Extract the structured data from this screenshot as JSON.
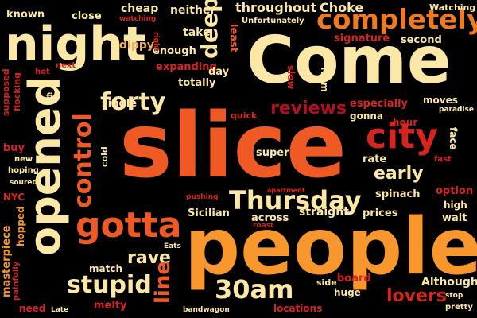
{
  "palette": {
    "background": "#000000",
    "cream": "#fbe8a6",
    "orange": "#f7972e",
    "red": "#d6241e",
    "deep-red": "#b01020",
    "light-orange": "#f4b05a"
  },
  "words": [
    {
      "text": "slice",
      "color": "#ef5a24"
    },
    {
      "text": "people",
      "color": "#f7972e"
    },
    {
      "text": "Come",
      "color": "#fbe8a6"
    },
    {
      "text": "night",
      "color": "#fbe8a6"
    },
    {
      "text": "opened",
      "color": "#fbe8a6"
    },
    {
      "text": "completely",
      "color": "#f07a22"
    },
    {
      "text": "city",
      "color": "#d6241e"
    },
    {
      "text": "gotta",
      "color": "#ef5a24"
    },
    {
      "text": "Thursday",
      "color": "#fbe8a6"
    },
    {
      "text": "control",
      "color": "#ef5a24"
    },
    {
      "text": "forty",
      "color": "#fbe8a6"
    },
    {
      "text": "30am",
      "color": "#fbe8a6"
    },
    {
      "text": "stupid",
      "color": "#fbe8a6"
    },
    {
      "text": "early",
      "color": "#fbe8a6"
    },
    {
      "text": "deep",
      "color": "#fbe8a6"
    },
    {
      "text": "reviews",
      "color": "#b01020"
    },
    {
      "text": "lovers",
      "color": "#d6241e"
    },
    {
      "text": "rave",
      "color": "#fbe8a6"
    },
    {
      "text": "line",
      "color": "#ef5a24"
    },
    {
      "text": "throughout",
      "color": "#fbe8a6"
    },
    {
      "text": "Choke",
      "color": "#fbe8a6"
    },
    {
      "text": "cheap",
      "color": "#fbe8a6"
    },
    {
      "text": "neither",
      "color": "#fbe8a6"
    },
    {
      "text": "known",
      "color": "#fbe8a6"
    },
    {
      "text": "close",
      "color": "#fbe8a6"
    },
    {
      "text": "watching",
      "color": "#d6241e"
    },
    {
      "text": "Unfortunately",
      "color": "#fbe8a6"
    },
    {
      "text": "take",
      "color": "#fbe8a6"
    },
    {
      "text": "enough",
      "color": "#fbe8a6"
    },
    {
      "text": "least",
      "color": "#ef5a24"
    },
    {
      "text": "signature",
      "color": "#d6241e"
    },
    {
      "text": "second",
      "color": "#fbe8a6"
    },
    {
      "text": "Watching",
      "color": "#fbe8a6"
    },
    {
      "text": "dippy",
      "color": "#f4b05a"
    },
    {
      "text": "expanding",
      "color": "#d6241e"
    },
    {
      "text": "day",
      "color": "#fbe8a6"
    },
    {
      "text": "totally",
      "color": "#fbe8a6"
    },
    {
      "text": "slow",
      "color": "#d6241e"
    },
    {
      "text": "from",
      "color": "#fbe8a6"
    },
    {
      "text": "moves",
      "color": "#fbe8a6"
    },
    {
      "text": "especially",
      "color": "#d6241e"
    },
    {
      "text": "gonna",
      "color": "#fbe8a6"
    },
    {
      "text": "hour",
      "color": "#d6241e"
    },
    {
      "text": "paradise",
      "color": "#fbe8a6"
    },
    {
      "text": "face",
      "color": "#fbe8a6"
    },
    {
      "text": "fast",
      "color": "#d6241e"
    },
    {
      "text": "rate",
      "color": "#fbe8a6"
    },
    {
      "text": "quick",
      "color": "#d6241e"
    },
    {
      "text": "single",
      "color": "#fbe8a6"
    },
    {
      "text": "cold",
      "color": "#fbe8a6"
    },
    {
      "text": "super",
      "color": "#fbe8a6"
    },
    {
      "text": "supposed",
      "color": "#d6241e"
    },
    {
      "text": "flocking",
      "color": "#d6241e"
    },
    {
      "text": "fix",
      "color": "#fbe8a6"
    },
    {
      "text": "buy",
      "color": "#d6241e"
    },
    {
      "text": "new",
      "color": "#fbe8a6"
    },
    {
      "text": "hoping",
      "color": "#fbe8a6"
    },
    {
      "text": "soured",
      "color": "#fbe8a6"
    },
    {
      "text": "NYC",
      "color": "#d6241e"
    },
    {
      "text": "masterpiece",
      "color": "#f7972e"
    },
    {
      "text": "hopped",
      "color": "#f7972e"
    },
    {
      "text": "painfully",
      "color": "#d6241e"
    },
    {
      "text": "need",
      "color": "#d6241e"
    },
    {
      "text": "Late",
      "color": "#fbe8a6"
    },
    {
      "text": "match",
      "color": "#fbe8a6"
    },
    {
      "text": "Eats",
      "color": "#fbe8a6"
    },
    {
      "text": "melty",
      "color": "#d6241e"
    },
    {
      "text": "bandwagon",
      "color": "#fbe8a6"
    },
    {
      "text": "locations",
      "color": "#d6241e"
    },
    {
      "text": "side",
      "color": "#fbe8a6"
    },
    {
      "text": "board",
      "color": "#d6241e"
    },
    {
      "text": "huge",
      "color": "#fbe8a6"
    },
    {
      "text": "Although",
      "color": "#fbe8a6"
    },
    {
      "text": "stop",
      "color": "#fbe8a6"
    },
    {
      "text": "pretty",
      "color": "#fbe8a6"
    },
    {
      "text": "Sicilian",
      "color": "#fbe8a6"
    },
    {
      "text": "across",
      "color": "#fbe8a6"
    },
    {
      "text": "straight",
      "color": "#fbe8a6"
    },
    {
      "text": "prices",
      "color": "#fbe8a6"
    },
    {
      "text": "wait",
      "color": "#fbe8a6"
    },
    {
      "text": "high",
      "color": "#fbe8a6"
    },
    {
      "text": "option",
      "color": "#d6241e"
    },
    {
      "text": "spinach",
      "color": "#fbe8a6"
    },
    {
      "text": "apartment",
      "color": "#d6241e"
    },
    {
      "text": "pushing",
      "color": "#d6241e"
    },
    {
      "text": "roast",
      "color": "#d6241e"
    },
    {
      "text": "right",
      "color": "#d6241e"
    },
    {
      "text": "next",
      "color": "#d6241e"
    },
    {
      "text": "hot",
      "color": "#d6241e"
    }
  ]
}
